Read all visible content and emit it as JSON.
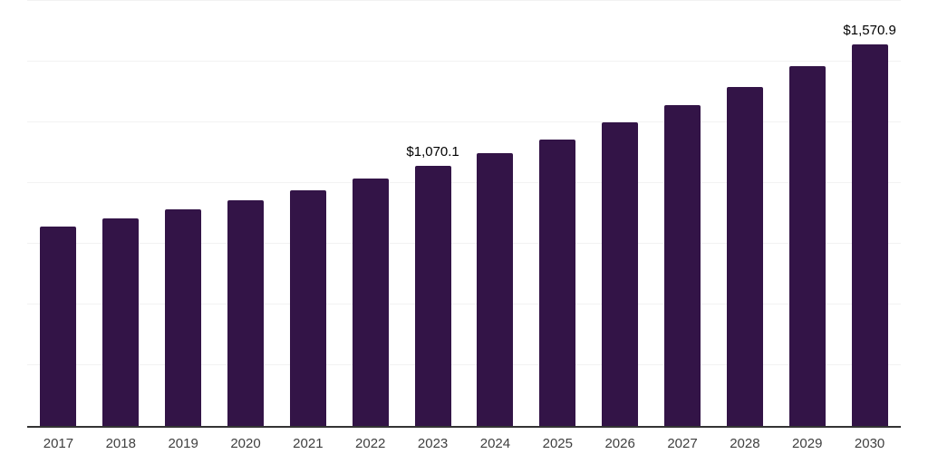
{
  "chart_data": {
    "type": "bar",
    "title": "",
    "xlabel": "",
    "ylabel": "",
    "categories": [
      "2017",
      "2018",
      "2019",
      "2020",
      "2021",
      "2022",
      "2023",
      "2024",
      "2025",
      "2026",
      "2027",
      "2028",
      "2029",
      "2030"
    ],
    "values": [
      820,
      854,
      893,
      929,
      972,
      1019,
      1070.1,
      1122,
      1181,
      1250,
      1320,
      1395,
      1482,
      1570.9
    ],
    "bar_labels": [
      "",
      "",
      "",
      "",
      "",
      "",
      "$1,070.1",
      "",
      "",
      "",
      "",
      "",
      "",
      "$1,570.9"
    ],
    "ylim": [
      0,
      1750
    ],
    "gridline_step": 250,
    "grid": true,
    "legend": false,
    "colors": {
      "background": "#ffffff",
      "bar": "#331447",
      "gridline": "#f2f2f2",
      "axis_line": "#343434",
      "tick_label": "#3f3f3f",
      "data_label": "#000000"
    }
  }
}
